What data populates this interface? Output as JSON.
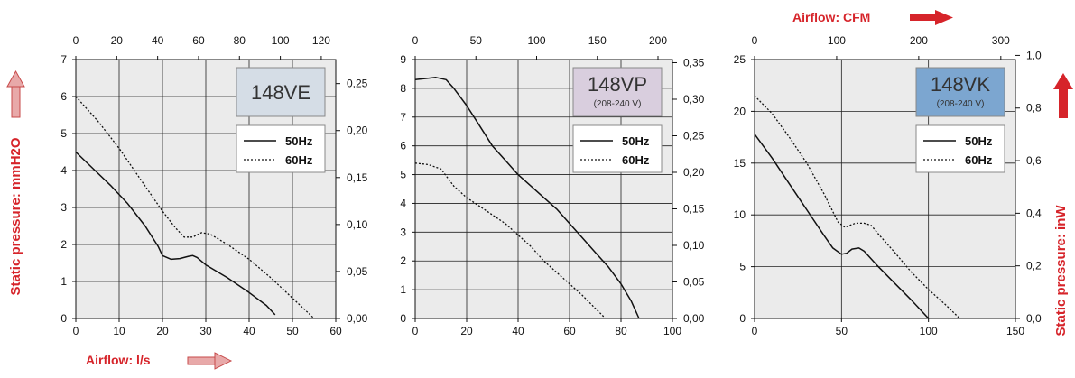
{
  "labels": {
    "left_axis": "Static pressure: mmH2O",
    "right_axis": "Static pressure: inW",
    "bottom_axis": "Airflow: l/s",
    "top_axis": "Airflow: CFM"
  },
  "colors": {
    "label_red": "#d6242a",
    "plot_bg": "#ebebeb",
    "grid": "#222222"
  },
  "chart_data": [
    {
      "type": "line",
      "model": "148VE",
      "subtitle": "",
      "model_color": "#d5dde6",
      "xlim": [
        0,
        60
      ],
      "xticks": [
        0,
        10,
        20,
        30,
        40,
        50,
        60
      ],
      "ylim": [
        0,
        7
      ],
      "yticks": [
        0,
        1,
        2,
        3,
        4,
        5,
        6,
        7
      ],
      "top_lim": [
        0,
        127.1
      ],
      "top_ticks": [
        "0",
        "20",
        "40",
        "60",
        "80",
        "100",
        "120"
      ],
      "top_vals": [
        0,
        20,
        40,
        60,
        80,
        100,
        120
      ],
      "right_lim": [
        0,
        0.2756
      ],
      "right_ticks": [
        "0,00",
        "0,05",
        "0,10",
        "0,15",
        "0,20",
        "0,25"
      ],
      "right_vals": [
        0,
        0.05,
        0.1,
        0.15,
        0.2,
        0.25
      ],
      "legend": [
        "50Hz",
        "60Hz"
      ],
      "series": [
        {
          "name": "50Hz",
          "style": "solid",
          "x": [
            0,
            4,
            8,
            12,
            16,
            19,
            20,
            22,
            24,
            26,
            27,
            28,
            30,
            35,
            40,
            44,
            46
          ],
          "y": [
            4.5,
            4.05,
            3.6,
            3.1,
            2.5,
            1.95,
            1.7,
            1.6,
            1.62,
            1.68,
            1.7,
            1.65,
            1.45,
            1.1,
            0.7,
            0.35,
            0.1
          ]
        },
        {
          "name": "60Hz",
          "style": "dotted",
          "x": [
            0,
            5,
            10,
            15,
            20,
            23,
            25,
            27,
            29,
            31,
            35,
            40,
            45,
            50,
            55
          ],
          "y": [
            6.0,
            5.35,
            4.6,
            3.75,
            2.9,
            2.45,
            2.2,
            2.2,
            2.32,
            2.28,
            2.0,
            1.6,
            1.1,
            0.55,
            0.0
          ]
        }
      ]
    },
    {
      "type": "line",
      "model": "148VP",
      "subtitle": "(208-240 V)",
      "model_color": "#d9cede",
      "xlim": [
        0,
        100
      ],
      "xticks": [
        0,
        20,
        40,
        60,
        80,
        100
      ],
      "ylim": [
        0,
        9
      ],
      "yticks": [
        0,
        1,
        2,
        3,
        4,
        5,
        6,
        7,
        8,
        9
      ],
      "top_lim": [
        0,
        211.9
      ],
      "top_ticks": [
        "0",
        "50",
        "100",
        "150",
        "200"
      ],
      "top_vals": [
        0,
        50,
        100,
        150,
        200
      ],
      "right_lim": [
        0,
        0.3543
      ],
      "right_ticks": [
        "0,00",
        "0,05",
        "0,10",
        "0,15",
        "0,20",
        "0,25",
        "0,30",
        "0,35"
      ],
      "right_vals": [
        0,
        0.05,
        0.1,
        0.15,
        0.2,
        0.25,
        0.3,
        0.35
      ],
      "legend": [
        "50Hz",
        "60Hz"
      ],
      "series": [
        {
          "name": "50Hz",
          "style": "solid",
          "x": [
            0,
            5,
            8,
            12,
            15,
            20,
            25,
            30,
            35,
            40,
            45,
            50,
            55,
            60,
            65,
            70,
            75,
            80,
            84,
            87
          ],
          "y": [
            8.3,
            8.35,
            8.38,
            8.3,
            8.0,
            7.4,
            6.7,
            6.0,
            5.5,
            5.0,
            4.6,
            4.2,
            3.8,
            3.3,
            2.8,
            2.3,
            1.8,
            1.2,
            0.6,
            0.0
          ]
        },
        {
          "name": "60Hz",
          "style": "dotted",
          "x": [
            0,
            5,
            10,
            15,
            20,
            25,
            30,
            35,
            40,
            45,
            50,
            55,
            60,
            65,
            70,
            74
          ],
          "y": [
            5.4,
            5.35,
            5.2,
            4.6,
            4.2,
            3.9,
            3.6,
            3.3,
            2.9,
            2.5,
            2.0,
            1.6,
            1.2,
            0.8,
            0.35,
            0.0
          ]
        }
      ]
    },
    {
      "type": "line",
      "model": "148VK",
      "subtitle": "(208-240 V)",
      "model_color": "#7ca6d0",
      "xlim": [
        0,
        150
      ],
      "xticks": [
        0,
        50,
        100,
        150
      ],
      "ylim": [
        0,
        25
      ],
      "yticks": [
        0,
        5,
        10,
        15,
        20,
        25
      ],
      "top_lim": [
        0,
        317.8
      ],
      "top_ticks": [
        "0",
        "100",
        "200",
        "300"
      ],
      "top_vals": [
        0,
        100,
        200,
        300
      ],
      "right_lim": [
        0,
        0.9843
      ],
      "right_ticks": [
        "0,0",
        "0,2",
        "0,4",
        "0,6",
        "0,8",
        "1,0"
      ],
      "right_vals": [
        0,
        0.2,
        0.4,
        0.6,
        0.8,
        1.0
      ],
      "legend": [
        "50Hz",
        "60Hz"
      ],
      "series": [
        {
          "name": "50Hz",
          "style": "solid",
          "x": [
            0,
            10,
            20,
            30,
            40,
            45,
            50,
            53,
            56,
            60,
            63,
            70,
            80,
            90,
            100
          ],
          "y": [
            17.8,
            15.5,
            13.0,
            10.5,
            8.0,
            6.8,
            6.2,
            6.3,
            6.7,
            6.8,
            6.5,
            5.2,
            3.5,
            1.8,
            0.0
          ]
        },
        {
          "name": "60Hz",
          "style": "dotted",
          "x": [
            0,
            10,
            20,
            30,
            40,
            48,
            52,
            58,
            63,
            67,
            72,
            80,
            90,
            100,
            110,
            118
          ],
          "y": [
            21.5,
            19.8,
            17.5,
            15.0,
            12.0,
            9.3,
            8.8,
            9.2,
            9.2,
            9.0,
            8.0,
            6.5,
            4.5,
            2.8,
            1.3,
            0.0
          ]
        }
      ]
    }
  ]
}
